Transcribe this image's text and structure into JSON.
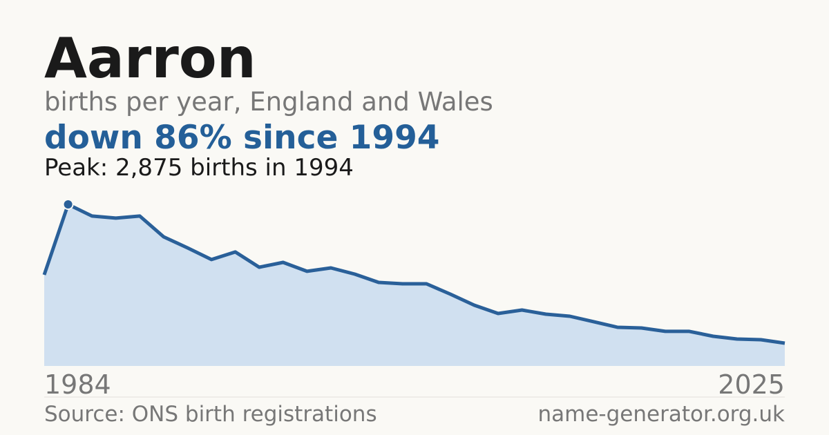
{
  "chart_data": {
    "type": "area",
    "title": "Aarron",
    "subtitle": "births per year, England and Wales",
    "headline": "down 86% since 1994",
    "annotation": "Peak: 2,875 births in 1994",
    "source": "Source: ONS birth registrations",
    "site": "name-generator.org.uk",
    "categories": [
      "1984",
      null,
      null,
      null,
      null,
      null,
      null,
      null,
      null,
      null,
      null,
      null,
      null,
      null,
      null,
      null,
      null,
      null,
      null,
      null,
      null,
      null,
      null,
      null,
      null,
      null,
      null,
      null,
      null,
      null,
      null,
      "2025"
    ],
    "values": [
      1622,
      2875,
      2667,
      2630,
      2667,
      2298,
      2101,
      1893,
      2028,
      1757,
      1843,
      1684,
      1745,
      1634,
      1487,
      1462,
      1462,
      1278,
      1081,
      934,
      995,
      922,
      885,
      787,
      688,
      676,
      615,
      615,
      528,
      479,
      467,
      406
    ],
    "ylim": [
      0,
      2875
    ],
    "color": "#2a6099",
    "fill": "#d0e0f0"
  }
}
